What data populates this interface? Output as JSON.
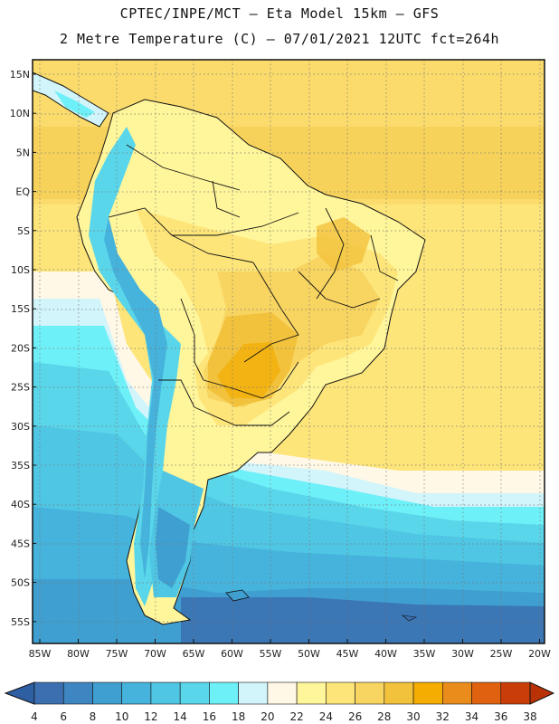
{
  "header": {
    "line1": "CPTEC/INPE/MCT –  Eta Model 15km – GFS",
    "line2": "2 Metre Temperature (C) – 07/01/2021 12UTC fct=264h"
  },
  "map": {
    "lat_labels": [
      "15N",
      "10N",
      "5N",
      "EQ",
      "5S",
      "10S",
      "15S",
      "20S",
      "25S",
      "30S",
      "35S",
      "40S",
      "45S",
      "50S",
      "55S"
    ],
    "lon_labels": [
      "85W",
      "80W",
      "75W",
      "70W",
      "65W",
      "60W",
      "55W",
      "50W",
      "45W",
      "40W",
      "35W",
      "30W",
      "25W",
      "20W"
    ]
  },
  "colorbar": {
    "labels": [
      "4",
      "6",
      "8",
      "10",
      "12",
      "14",
      "16",
      "18",
      "20",
      "22",
      "24",
      "26",
      "28",
      "30",
      "32",
      "34",
      "36",
      "38"
    ],
    "colors": [
      "#3b6fb0",
      "#3d86c2",
      "#3f9fd0",
      "#46b3dc",
      "#4fc6e4",
      "#5ad6ea",
      "#6ef0f8",
      "#d2f4fb",
      "#fff8e6",
      "#fff59a",
      "#fde57a",
      "#f8d460",
      "#f2c23c",
      "#f4ad00",
      "#ea8c1c",
      "#e06210",
      "#c93e08"
    ],
    "low_color": "#2e5fa3",
    "high_color": "#b83206"
  }
}
